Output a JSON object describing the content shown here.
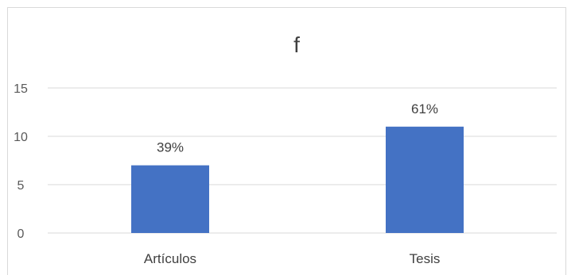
{
  "chart_data": {
    "type": "bar",
    "title": "f",
    "xlabel": "",
    "ylabel": "",
    "categories": [
      "Artículos",
      "Tesis"
    ],
    "values": [
      7,
      11
    ],
    "data_labels": [
      "39%",
      "61%"
    ],
    "ylim": [
      0,
      15
    ],
    "yticks": [
      "0",
      "5",
      "10",
      "15"
    ],
    "grid": true,
    "legend": "none",
    "bar_color": "#4472C4",
    "grid_color": "#d9d9d9"
  }
}
